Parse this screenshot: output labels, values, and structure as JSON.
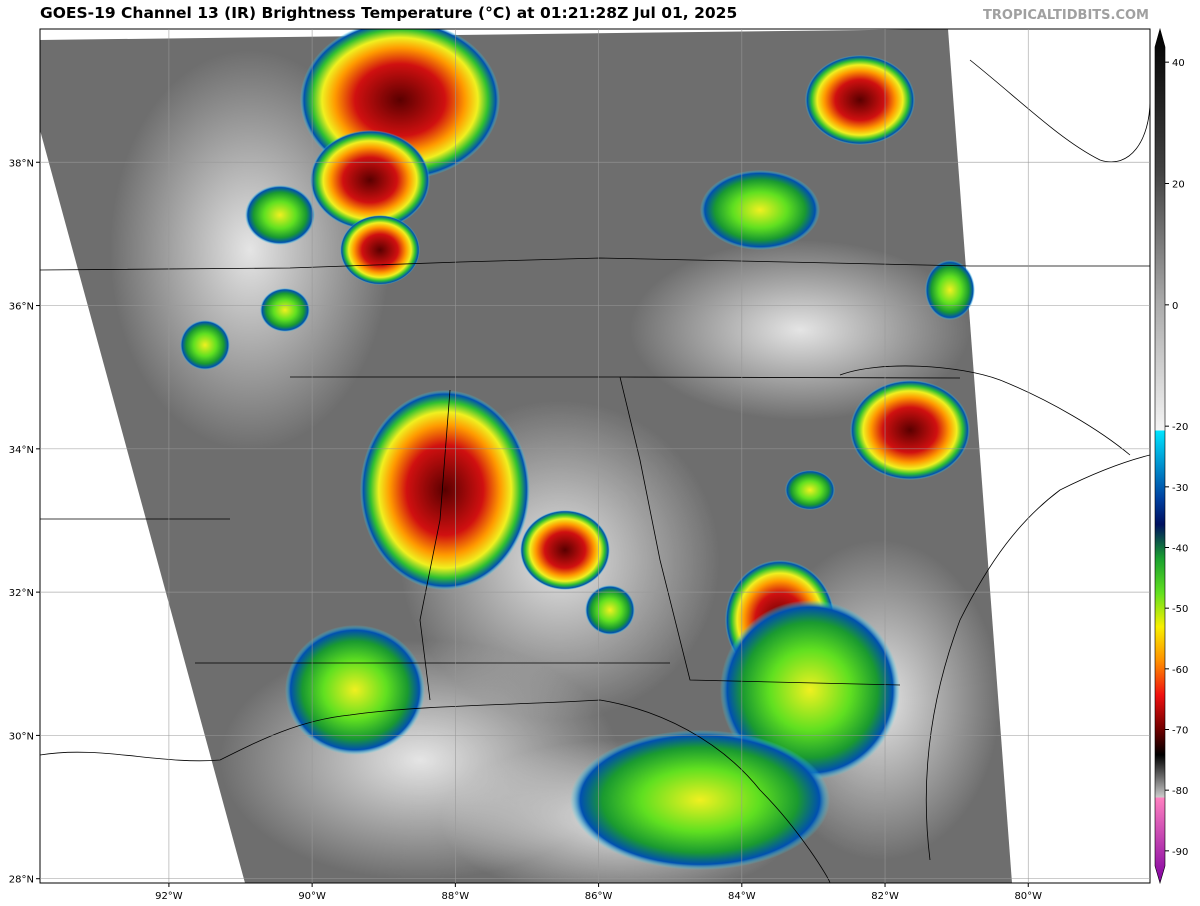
{
  "chart_data": {
    "type": "map",
    "title": "GOES-19 Channel 13 (IR) Brightness Temperature (°C) at 01:21:28Z Jul 01, 2025",
    "watermark": "TROPICALTIDBITS.COM",
    "xlim": [
      -93.8,
      -78.3
    ],
    "ylim": [
      27.94,
      39.86
    ],
    "xticks": [
      {
        "value": -92,
        "label": "92°W"
      },
      {
        "value": -90,
        "label": "90°W"
      },
      {
        "value": -88,
        "label": "88°W"
      },
      {
        "value": -86,
        "label": "86°W"
      },
      {
        "value": -84,
        "label": "84°W"
      },
      {
        "value": -82,
        "label": "82°W"
      },
      {
        "value": -80,
        "label": "80°W"
      }
    ],
    "yticks": [
      {
        "value": 28,
        "label": "28°N"
      },
      {
        "value": 30,
        "label": "30°N"
      },
      {
        "value": 32,
        "label": "32°N"
      },
      {
        "value": 34,
        "label": "34°N"
      },
      {
        "value": 36,
        "label": "36°N"
      },
      {
        "value": 38,
        "label": "38°N"
      }
    ],
    "grid": true,
    "colorbar": {
      "clim": [
        -92.5,
        42.5
      ],
      "ticks": [
        40,
        20,
        0,
        -20,
        -30,
        -40,
        -50,
        -60,
        -70,
        -80,
        -90
      ]
    }
  }
}
